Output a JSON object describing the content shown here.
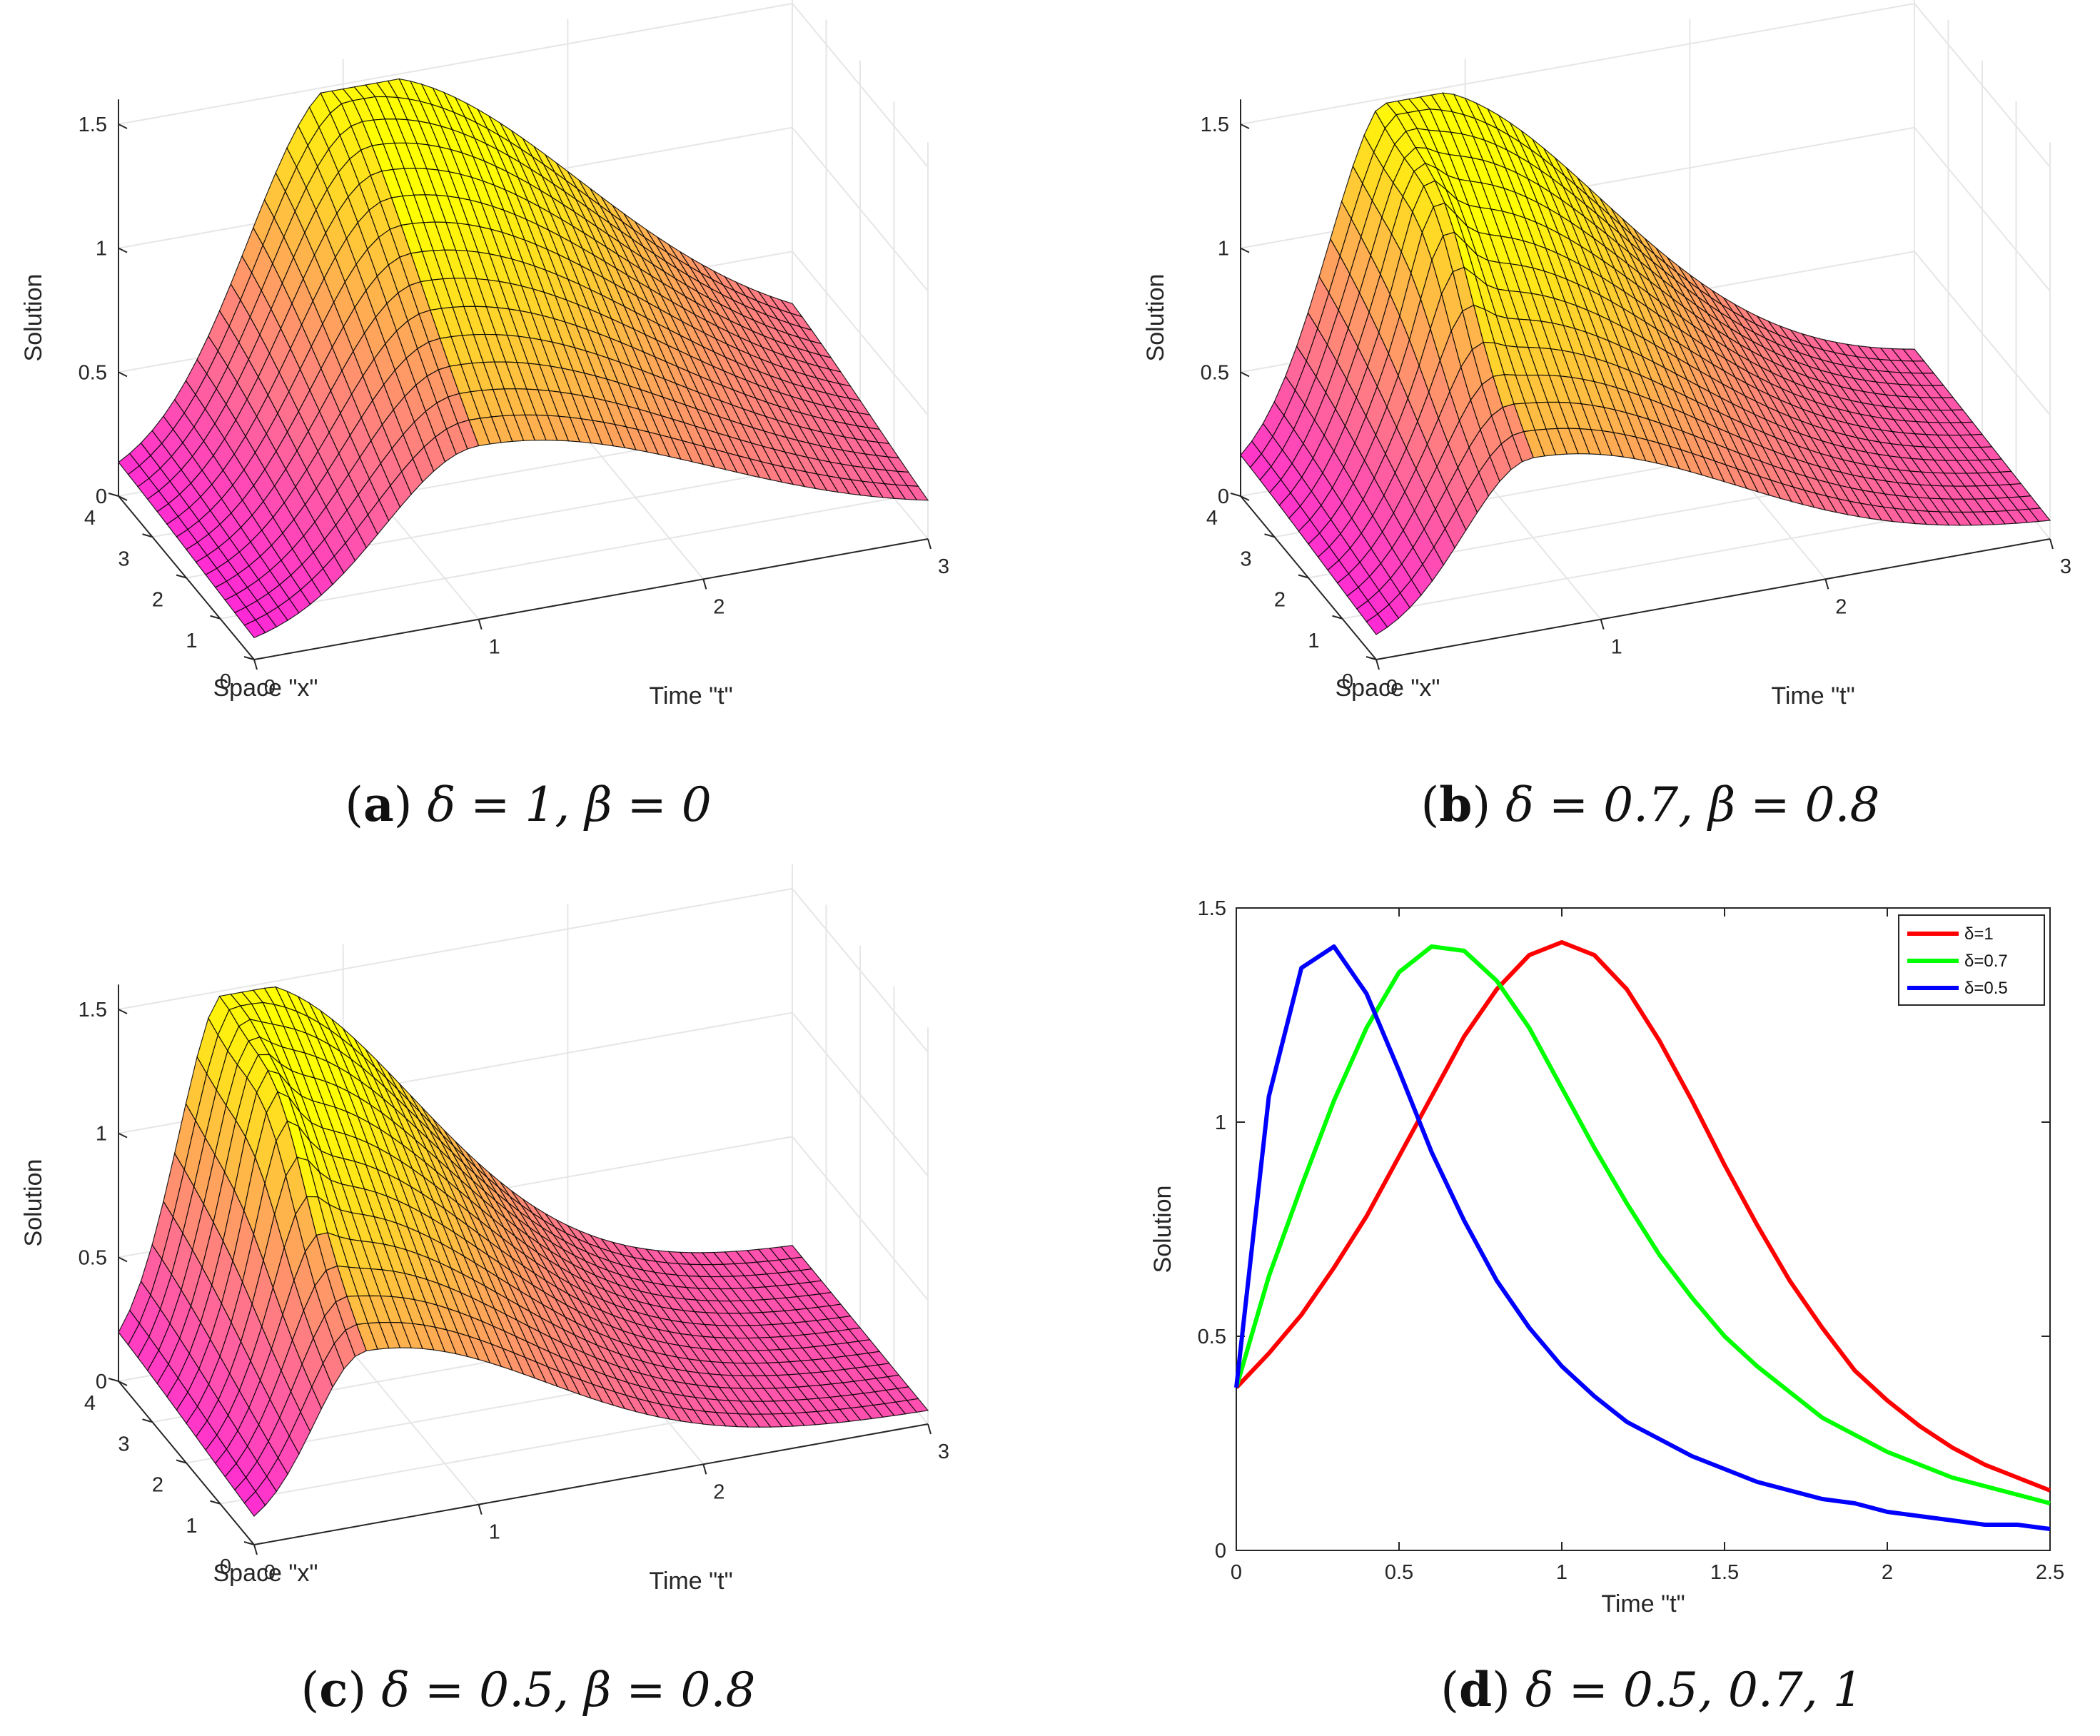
{
  "colors": {
    "red": "#ff0000",
    "green": "#00ff00",
    "blue": "#0000ff",
    "surface_low": "#ff00ff",
    "surface_high": "#ffff00"
  },
  "chart_data": [
    {
      "panel": "a",
      "type": "surface3d",
      "caption": {
        "label": "a",
        "text": "δ = 1,  β = 0"
      },
      "zlabel": "Solution",
      "xlabel": "Space \"x\"",
      "ylabel": "Time \"t\"",
      "zticks": [
        "0",
        "0.5",
        "1",
        "1.5"
      ],
      "xticks": [
        "0",
        "1",
        "2",
        "3",
        "4"
      ],
      "tticks": [
        "0",
        "1",
        "2",
        "3"
      ],
      "xlim": [
        0,
        4
      ],
      "tlim": [
        0,
        3
      ],
      "zlim": [
        0,
        1.6
      ],
      "delta": 1,
      "beta": 0,
      "peak_solution": 1.45
    },
    {
      "panel": "b",
      "type": "surface3d",
      "caption": {
        "label": "b",
        "text": "δ = 0.7,  β = 0.8"
      },
      "zlabel": "Solution",
      "xlabel": "Space \"x\"",
      "ylabel": "Time \"t\"",
      "zticks": [
        "0",
        "0.5",
        "1",
        "1.5"
      ],
      "xticks": [
        "0",
        "1",
        "2",
        "3",
        "4"
      ],
      "tticks": [
        "0",
        "1",
        "2",
        "3"
      ],
      "xlim": [
        0,
        4
      ],
      "tlim": [
        0,
        3
      ],
      "zlim": [
        0,
        1.6
      ],
      "delta": 0.7,
      "beta": 0.8,
      "peak_solution": 1.42
    },
    {
      "panel": "c",
      "type": "surface3d",
      "caption": {
        "label": "c",
        "text": "δ = 0.5,  β = 0.8"
      },
      "zlabel": "Solution",
      "xlabel": "Space \"x\"",
      "ylabel": "Time \"t\"",
      "zticks": [
        "0",
        "0.5",
        "1",
        "1.5"
      ],
      "xticks": [
        "0",
        "1",
        "2",
        "3",
        "4"
      ],
      "tticks": [
        "0",
        "1",
        "2",
        "3"
      ],
      "xlim": [
        0,
        4
      ],
      "tlim": [
        0,
        3
      ],
      "zlim": [
        0,
        1.6
      ],
      "delta": 0.5,
      "beta": 0.8,
      "peak_solution": 1.41
    },
    {
      "panel": "d",
      "type": "line",
      "caption": {
        "label": "d",
        "text": "δ =  0.5, 0.7, 1"
      },
      "xlabel": "Time \"t\"",
      "ylabel": "Solution",
      "xlim": [
        0,
        2.5
      ],
      "ylim": [
        0,
        1.5
      ],
      "xticks": [
        "0",
        "0.5",
        "1",
        "1.5",
        "2",
        "2.5"
      ],
      "yticks": [
        "0",
        "0.5",
        "1",
        "1.5"
      ],
      "legend_position": "top-right",
      "x": [
        0,
        0.1,
        0.2,
        0.3,
        0.4,
        0.5,
        0.6,
        0.7,
        0.8,
        0.9,
        1.0,
        1.1,
        1.2,
        1.3,
        1.4,
        1.5,
        1.6,
        1.7,
        1.8,
        1.9,
        2.0,
        2.1,
        2.2,
        2.3,
        2.4,
        2.5
      ],
      "series": [
        {
          "name": "δ=1",
          "color": "#ff0000",
          "values": [
            0.38,
            0.46,
            0.55,
            0.66,
            0.78,
            0.92,
            1.06,
            1.2,
            1.31,
            1.39,
            1.42,
            1.39,
            1.31,
            1.19,
            1.05,
            0.9,
            0.76,
            0.63,
            0.52,
            0.42,
            0.35,
            0.29,
            0.24,
            0.2,
            0.17,
            0.14
          ]
        },
        {
          "name": "δ=0.7",
          "color": "#00ff00",
          "values": [
            0.38,
            0.64,
            0.85,
            1.05,
            1.22,
            1.35,
            1.41,
            1.4,
            1.33,
            1.22,
            1.08,
            0.94,
            0.81,
            0.69,
            0.59,
            0.5,
            0.43,
            0.37,
            0.31,
            0.27,
            0.23,
            0.2,
            0.17,
            0.15,
            0.13,
            0.11
          ]
        },
        {
          "name": "δ=0.5",
          "color": "#0000ff",
          "values": [
            0.38,
            1.06,
            1.36,
            1.41,
            1.3,
            1.12,
            0.93,
            0.77,
            0.63,
            0.52,
            0.43,
            0.36,
            0.3,
            0.26,
            0.22,
            0.19,
            0.16,
            0.14,
            0.12,
            0.11,
            0.09,
            0.08,
            0.07,
            0.06,
            0.06,
            0.05
          ]
        }
      ]
    }
  ]
}
